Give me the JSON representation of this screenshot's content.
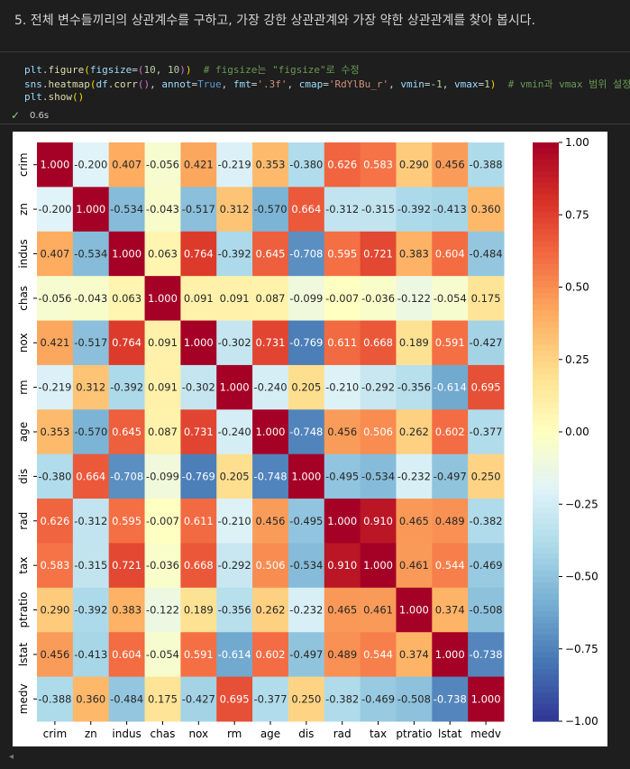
{
  "markdown": {
    "text": "5. 전체 변수들끼리의 상관계수를 구하고, 가장 강한 상관관계와 가장 약한 상관관계를 찾아 봅시다."
  },
  "code": {
    "lines": [
      [
        [
          "plt",
          "var"
        ],
        [
          ".",
          "pl"
        ],
        [
          "figure",
          "fn"
        ],
        [
          "(",
          "p1"
        ],
        [
          "figsize",
          "var"
        ],
        [
          "=",
          "pl"
        ],
        [
          "(",
          "p2"
        ],
        [
          "10",
          "num"
        ],
        [
          ", ",
          "pl"
        ],
        [
          "10",
          "num"
        ],
        [
          ")",
          "p2"
        ],
        [
          ")",
          "p1"
        ],
        [
          "  # figsize는 \"figsize\"로 수정",
          "cm"
        ]
      ],
      [
        [
          "sns",
          "var"
        ],
        [
          ".",
          "pl"
        ],
        [
          "heatmap",
          "fn"
        ],
        [
          "(",
          "p1"
        ],
        [
          "df",
          "var"
        ],
        [
          ".",
          "pl"
        ],
        [
          "corr",
          "fn"
        ],
        [
          "()",
          "p2"
        ],
        [
          ", ",
          "pl"
        ],
        [
          "annot",
          "var"
        ],
        [
          "=",
          "pl"
        ],
        [
          "True",
          "kw"
        ],
        [
          ", ",
          "pl"
        ],
        [
          "fmt",
          "var"
        ],
        [
          "=",
          "pl"
        ],
        [
          "'.3f'",
          "str"
        ],
        [
          ", ",
          "pl"
        ],
        [
          "cmap",
          "var"
        ],
        [
          "=",
          "pl"
        ],
        [
          "'RdYlBu_r'",
          "str"
        ],
        [
          ", ",
          "pl"
        ],
        [
          "vmin",
          "var"
        ],
        [
          "=-",
          "pl"
        ],
        [
          "1",
          "num"
        ],
        [
          ", ",
          "pl"
        ],
        [
          "vmax",
          "var"
        ],
        [
          "=",
          "pl"
        ],
        [
          "1",
          "num"
        ],
        [
          ")",
          "p1"
        ],
        [
          "  # vmin과 vmax 범위 설정",
          "cm"
        ]
      ],
      [
        [
          "plt",
          "var"
        ],
        [
          ".",
          "pl"
        ],
        [
          "show",
          "fn"
        ],
        [
          "()",
          "p1"
        ]
      ]
    ]
  },
  "status": {
    "icon": "check-icon",
    "time": "0.6s"
  },
  "chart_data": {
    "type": "heatmap",
    "colormap": "RdYlBu_r",
    "vmin": -1,
    "vmax": 1,
    "labels": [
      "crim",
      "zn",
      "indus",
      "chas",
      "nox",
      "rm",
      "age",
      "dis",
      "rad",
      "tax",
      "ptratio",
      "lstat",
      "medv"
    ],
    "colorbar_ticks": [
      "1.00",
      "0.75",
      "0.50",
      "0.25",
      "0.00",
      "−0.25",
      "−0.50",
      "−0.75",
      "−1.00"
    ],
    "colorbar_tick_values": [
      1,
      0.75,
      0.5,
      0.25,
      0,
      -0.25,
      -0.5,
      -0.75,
      -1
    ],
    "matrix": [
      [
        1.0,
        -0.2,
        0.407,
        -0.056,
        0.421,
        -0.219,
        0.353,
        -0.38,
        0.626,
        0.583,
        0.29,
        0.456,
        -0.388
      ],
      [
        -0.2,
        1.0,
        -0.534,
        -0.043,
        -0.517,
        0.312,
        -0.57,
        0.664,
        -0.312,
        -0.315,
        -0.392,
        -0.413,
        0.36
      ],
      [
        0.407,
        -0.534,
        1.0,
        0.063,
        0.764,
        -0.392,
        0.645,
        -0.708,
        0.595,
        0.721,
        0.383,
        0.604,
        -0.484
      ],
      [
        -0.056,
        -0.043,
        0.063,
        1.0,
        0.091,
        0.091,
        0.087,
        -0.099,
        -0.007,
        -0.036,
        -0.122,
        -0.054,
        0.175
      ],
      [
        0.421,
        -0.517,
        0.764,
        0.091,
        1.0,
        -0.302,
        0.731,
        -0.769,
        0.611,
        0.668,
        0.189,
        0.591,
        -0.427
      ],
      [
        -0.219,
        0.312,
        -0.392,
        0.091,
        -0.302,
        1.0,
        -0.24,
        0.205,
        -0.21,
        -0.292,
        -0.356,
        -0.614,
        0.695
      ],
      [
        0.353,
        -0.57,
        0.645,
        0.087,
        0.731,
        -0.24,
        1.0,
        -0.748,
        0.456,
        0.506,
        0.262,
        0.602,
        -0.377
      ],
      [
        -0.38,
        0.664,
        -0.708,
        -0.099,
        -0.769,
        0.205,
        -0.748,
        1.0,
        -0.495,
        -0.534,
        -0.232,
        -0.497,
        0.25
      ],
      [
        0.626,
        -0.312,
        0.595,
        -0.007,
        0.611,
        -0.21,
        0.456,
        -0.495,
        1.0,
        0.91,
        0.465,
        0.489,
        -0.382
      ],
      [
        0.583,
        -0.315,
        0.721,
        -0.036,
        0.668,
        -0.292,
        0.506,
        -0.534,
        0.91,
        1.0,
        0.461,
        0.544,
        -0.469
      ],
      [
        0.29,
        -0.392,
        0.383,
        -0.122,
        0.189,
        -0.356,
        0.262,
        -0.232,
        0.465,
        0.461,
        1.0,
        0.374,
        -0.508
      ],
      [
        0.456,
        -0.413,
        0.604,
        -0.054,
        0.591,
        -0.614,
        0.602,
        -0.497,
        0.489,
        0.544,
        0.374,
        1.0,
        -0.738
      ],
      [
        -0.388,
        0.36,
        -0.484,
        0.175,
        -0.427,
        0.695,
        -0.377,
        0.25,
        -0.382,
        -0.469,
        -0.508,
        -0.738,
        1.0
      ]
    ]
  }
}
